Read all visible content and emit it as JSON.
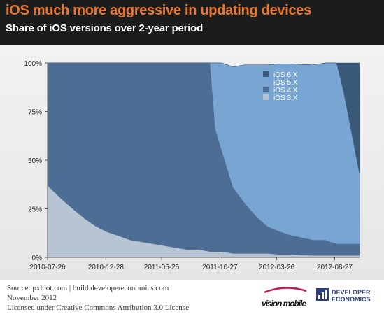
{
  "header": {
    "title": "iOS much more aggressive in updating devices",
    "subtitle": "Share of iOS versions over 2-year period"
  },
  "colors": {
    "header_bg": "#1c1c1c",
    "title": "#e8762d",
    "ios3": "#b7c4d3",
    "ios4": "#4d6d94",
    "ios5": "#79a5d3",
    "ios6": "#3a5878"
  },
  "chart_data": {
    "type": "area",
    "stacked": true,
    "title": "",
    "xlabel": "",
    "ylabel": "",
    "ylim": [
      0,
      100
    ],
    "y_tick_labels": [
      "100%",
      "75%",
      "50%",
      "25%",
      "0%"
    ],
    "y_ticks": [
      100,
      75,
      50,
      25,
      0
    ],
    "x_tick_labels": [
      "2010-07-26",
      "2010-12-28",
      "2011-05-25",
      "2011-10-27",
      "2012-03-26",
      "2012-08-27"
    ],
    "x": [
      "2010-07-26",
      "2010-09-01",
      "2010-10-01",
      "2010-11-01",
      "2010-12-01",
      "2011-01-01",
      "2011-02-01",
      "2011-03-01",
      "2011-04-01",
      "2011-05-01",
      "2011-06-01",
      "2011-07-01",
      "2011-08-01",
      "2011-09-01",
      "2011-10-01",
      "2011-10-15",
      "2011-11-01",
      "2011-12-01",
      "2012-01-01",
      "2012-02-01",
      "2012-03-01",
      "2012-04-01",
      "2012-05-01",
      "2012-06-01",
      "2012-07-01",
      "2012-08-01",
      "2012-09-01",
      "2012-09-20",
      "2012-10-10",
      "2012-11-01"
    ],
    "legend_position": "top-right",
    "grid": false,
    "series": [
      {
        "name": "iOS 6.X",
        "values": [
          0,
          0,
          0,
          0,
          0,
          0,
          0,
          0,
          0,
          0,
          0,
          0,
          0,
          0,
          0,
          0,
          0,
          0,
          0,
          0,
          0,
          0,
          0,
          0,
          0,
          0,
          0,
          15,
          35,
          57
        ]
      },
      {
        "name": "iOS 5.X",
        "values": [
          0,
          0,
          0,
          0,
          0,
          0,
          0,
          0,
          0,
          0,
          0,
          0,
          0,
          0,
          0,
          34,
          45,
          62,
          71,
          78,
          83,
          86,
          88,
          89,
          90,
          91,
          93,
          78,
          58,
          36
        ]
      },
      {
        "name": "iOS 4.X",
        "values": [
          63,
          70,
          75,
          80,
          84,
          87,
          89,
          91,
          92,
          93,
          94,
          95,
          96,
          96,
          97,
          63,
          52,
          34,
          26,
          19,
          14,
          12,
          10,
          9,
          8,
          8,
          6,
          6,
          6,
          6
        ]
      },
      {
        "name": "iOS 3.X",
        "values": [
          37,
          30,
          25,
          20,
          16,
          13,
          11,
          9,
          8,
          7,
          6,
          5,
          4,
          4,
          3,
          3,
          3,
          2,
          2,
          2,
          2,
          1.5,
          1.5,
          1.2,
          1,
          1,
          1,
          1,
          1,
          1
        ]
      }
    ]
  },
  "footer": {
    "line1": "Source: pxldot.com | build.developereconomics.com",
    "line2": "November 2012",
    "line3": "Licensed under Creative Commons Attribution 3.0 License"
  },
  "logos": {
    "vision": "vision mobile",
    "developer_line1": "DEVELOPER",
    "developer_line2": "ECONOMICS"
  }
}
